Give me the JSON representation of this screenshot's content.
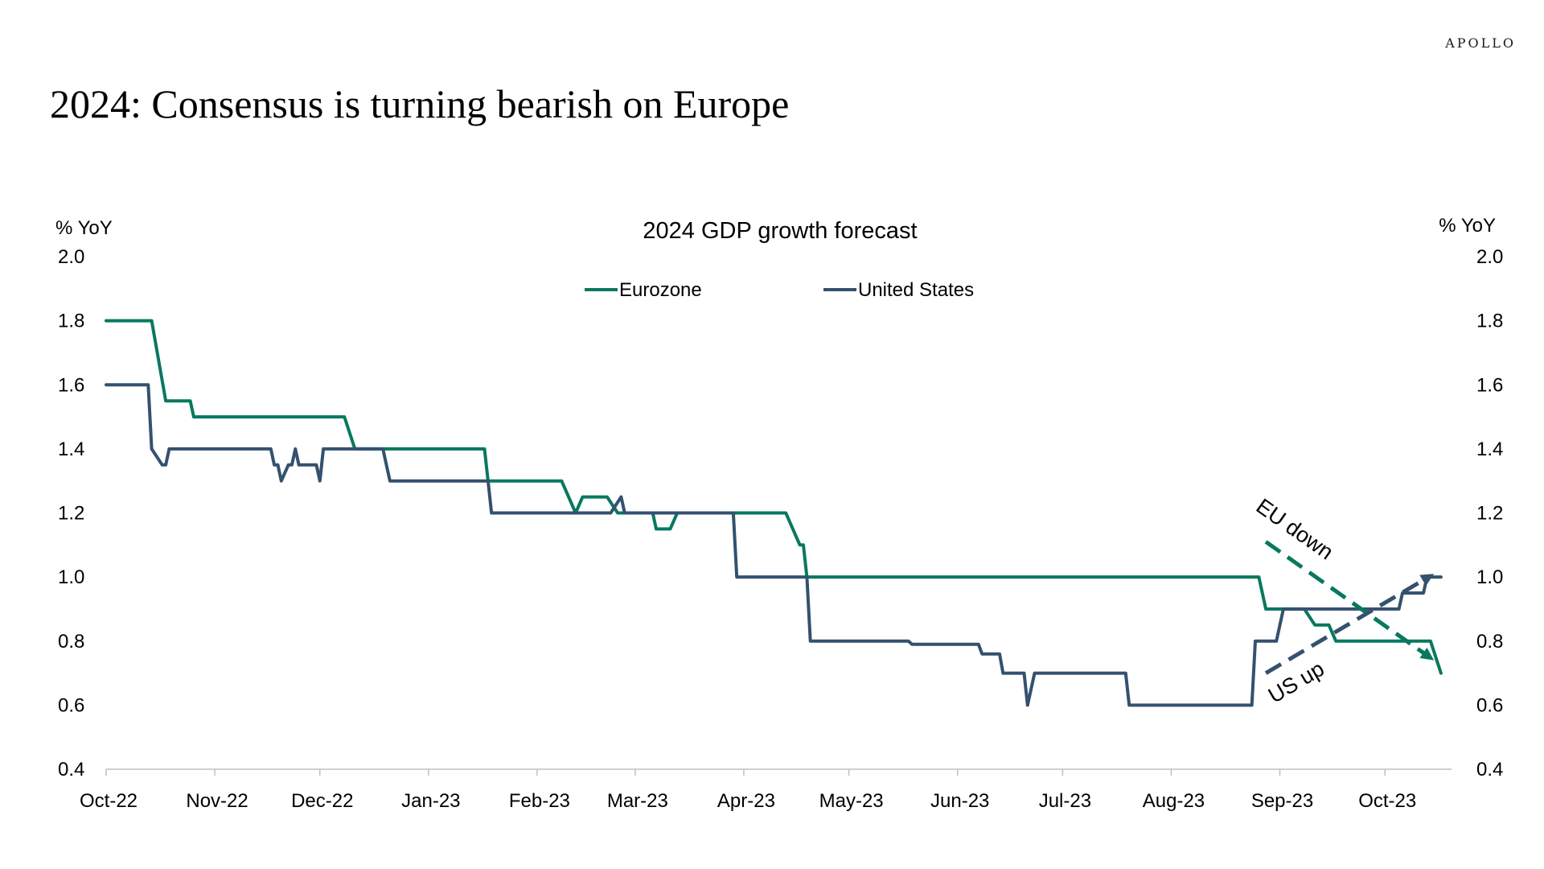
{
  "brand": "APOLLO",
  "headline": "2024: Consensus is turning bearish on Europe",
  "colors": {
    "eurozone": "#08785F",
    "us": "#34516E"
  },
  "chart_data": {
    "type": "line",
    "title": "2024  GDP growth forecast",
    "ylabel_left": "% YoY",
    "ylabel_right": "% YoY",
    "ylim": [
      0.4,
      2.0
    ],
    "yticks": [
      "0.4",
      "0.6",
      "0.8",
      "1.0",
      "1.2",
      "1.4",
      "1.6",
      "1.8",
      "2.0"
    ],
    "xrange": [
      "2022-10-01",
      "2023-10-20"
    ],
    "xticks": [
      {
        "label": "Oct-22",
        "date": "2022-10-01"
      },
      {
        "label": "Nov-22",
        "date": "2022-11-01"
      },
      {
        "label": "Dec-22",
        "date": "2022-12-01"
      },
      {
        "label": "Jan-23",
        "date": "2023-01-01"
      },
      {
        "label": "Feb-23",
        "date": "2023-02-01"
      },
      {
        "label": "Mar-23",
        "date": "2023-03-01"
      },
      {
        "label": "Apr-23",
        "date": "2023-04-01"
      },
      {
        "label": "May-23",
        "date": "2023-05-01"
      },
      {
        "label": "Jun-23",
        "date": "2023-06-01"
      },
      {
        "label": "Jul-23",
        "date": "2023-07-01"
      },
      {
        "label": "Aug-23",
        "date": "2023-08-01"
      },
      {
        "label": "Sep-23",
        "date": "2023-09-01"
      },
      {
        "label": "Oct-23",
        "date": "2023-10-01"
      }
    ],
    "legend": "top-center",
    "grid": false,
    "series": [
      {
        "name": "Eurozone",
        "color": "#08785F",
        "x": [
          "2022-10-01",
          "2022-10-14",
          "2022-10-18",
          "2022-10-25",
          "2022-10-26",
          "2022-12-08",
          "2022-12-11",
          "2023-01-17",
          "2023-01-18",
          "2023-02-08",
          "2023-02-12",
          "2023-02-14",
          "2023-02-21",
          "2023-02-24",
          "2023-03-06",
          "2023-03-07",
          "2023-03-11",
          "2023-03-13",
          "2023-03-14",
          "2023-04-13",
          "2023-04-17",
          "2023-04-18",
          "2023-04-19",
          "2023-08-26",
          "2023-08-28",
          "2023-09-08",
          "2023-09-11",
          "2023-09-15",
          "2023-09-17",
          "2023-10-14",
          "2023-10-17"
        ],
        "y": [
          1.8,
          1.8,
          1.55,
          1.55,
          1.5,
          1.5,
          1.4,
          1.4,
          1.3,
          1.3,
          1.2,
          1.25,
          1.25,
          1.2,
          1.2,
          1.15,
          1.15,
          1.2,
          1.2,
          1.2,
          1.1,
          1.1,
          1.0,
          1.0,
          0.9,
          0.9,
          0.85,
          0.85,
          0.8,
          0.8,
          0.7
        ]
      },
      {
        "name": "United States",
        "color": "#34516E",
        "x": [
          "2022-10-01",
          "2022-10-13",
          "2022-10-14",
          "2022-10-17",
          "2022-10-18",
          "2022-10-19",
          "2022-11-17",
          "2022-11-18",
          "2022-11-19",
          "2022-11-20",
          "2022-11-22",
          "2022-11-23",
          "2022-11-24",
          "2022-11-25",
          "2022-11-30",
          "2022-12-01",
          "2022-12-02",
          "2022-12-19",
          "2022-12-20",
          "2022-12-21",
          "2023-01-18",
          "2023-01-19",
          "2023-02-22",
          "2023-02-25",
          "2023-02-26",
          "2023-03-29",
          "2023-03-30",
          "2023-04-19",
          "2023-04-20",
          "2023-05-18",
          "2023-05-19",
          "2023-06-07",
          "2023-06-08",
          "2023-06-13",
          "2023-06-14",
          "2023-06-20",
          "2023-06-21",
          "2023-06-23",
          "2023-07-19",
          "2023-07-20",
          "2023-08-24",
          "2023-08-25",
          "2023-08-31",
          "2023-09-02",
          "2023-10-05",
          "2023-10-06",
          "2023-10-12",
          "2023-10-13",
          "2023-10-17"
        ],
        "y": [
          1.6,
          1.6,
          1.4,
          1.35,
          1.35,
          1.4,
          1.4,
          1.35,
          1.35,
          1.3,
          1.35,
          1.35,
          1.4,
          1.35,
          1.35,
          1.3,
          1.4,
          1.4,
          1.35,
          1.3,
          1.3,
          1.2,
          1.2,
          1.25,
          1.2,
          1.2,
          1.0,
          1.0,
          0.8,
          0.8,
          0.79,
          0.79,
          0.76,
          0.76,
          0.7,
          0.7,
          0.6,
          0.7,
          0.7,
          0.6,
          0.6,
          0.8,
          0.8,
          0.9,
          0.9,
          0.95,
          0.95,
          1.0,
          1.0
        ]
      }
    ],
    "annotations": [
      {
        "text": "EU down",
        "color": "#08785F",
        "style": "dashed-arrow",
        "from": {
          "x": "2023-08-28",
          "y": 1.11
        },
        "to": {
          "x": "2023-10-15",
          "y": 0.74
        }
      },
      {
        "text": "US up",
        "color": "#34516E",
        "style": "dashed-arrow",
        "from": {
          "x": "2023-08-28",
          "y": 0.7
        },
        "to": {
          "x": "2023-10-15",
          "y": 1.01
        }
      }
    ]
  }
}
